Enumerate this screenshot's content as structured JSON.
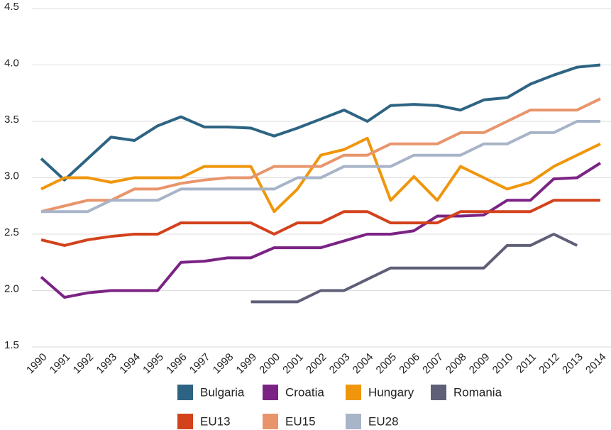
{
  "chart_data": {
    "type": "line",
    "categories": [
      "1990",
      "1991",
      "1992",
      "1993",
      "1994",
      "1995",
      "1996",
      "1997",
      "1998",
      "1999",
      "2000",
      "2001",
      "2002",
      "2003",
      "2004",
      "2005",
      "2006",
      "2007",
      "2008",
      "2009",
      "2010",
      "2011",
      "2012",
      "2013",
      "2014"
    ],
    "series": [
      {
        "name": "Bulgaria",
        "color": "#2e6483",
        "values": [
          3.17,
          2.98,
          3.17,
          3.36,
          3.33,
          3.46,
          3.54,
          3.45,
          3.45,
          3.44,
          3.37,
          3.44,
          3.52,
          3.6,
          3.5,
          3.64,
          3.65,
          3.64,
          3.6,
          3.69,
          3.71,
          3.83,
          3.91,
          3.98,
          4.0
        ]
      },
      {
        "name": "Croatia",
        "color": "#7b2384",
        "values": [
          2.12,
          1.94,
          1.98,
          2.0,
          2.0,
          2.0,
          2.25,
          2.26,
          2.29,
          2.29,
          2.38,
          2.38,
          2.38,
          2.44,
          2.5,
          2.5,
          2.53,
          2.66,
          2.66,
          2.67,
          2.8,
          2.8,
          2.99,
          3.0,
          3.13
        ]
      },
      {
        "name": "Hungary",
        "color": "#f0960c",
        "values": [
          2.9,
          3.0,
          3.0,
          2.96,
          3.0,
          3.0,
          3.0,
          3.1,
          3.1,
          3.1,
          2.7,
          2.9,
          3.2,
          3.25,
          3.35,
          2.8,
          3.01,
          2.8,
          3.1,
          3.0,
          2.9,
          2.96,
          3.1,
          3.2,
          3.3
        ]
      },
      {
        "name": "Romania",
        "color": "#5f5f78",
        "values": [
          null,
          null,
          null,
          null,
          null,
          null,
          null,
          null,
          null,
          1.9,
          1.9,
          1.9,
          2.0,
          2.0,
          2.1,
          2.2,
          2.2,
          2.2,
          2.2,
          2.2,
          2.4,
          2.4,
          2.5,
          2.4,
          null
        ]
      },
      {
        "name": "EU13",
        "color": "#d2421c",
        "values": [
          2.45,
          2.4,
          2.45,
          2.48,
          2.5,
          2.5,
          2.6,
          2.6,
          2.6,
          2.6,
          2.5,
          2.6,
          2.6,
          2.7,
          2.7,
          2.6,
          2.6,
          2.6,
          2.7,
          2.7,
          2.7,
          2.7,
          2.8,
          2.8,
          2.8
        ]
      },
      {
        "name": "EU15",
        "color": "#e8956c",
        "values": [
          2.7,
          2.75,
          2.8,
          2.8,
          2.9,
          2.9,
          2.95,
          2.98,
          3.0,
          3.0,
          3.1,
          3.1,
          3.1,
          3.2,
          3.2,
          3.3,
          3.3,
          3.3,
          3.4,
          3.4,
          3.5,
          3.6,
          3.6,
          3.6,
          3.7
        ]
      },
      {
        "name": "EU28",
        "color": "#a8b4c8",
        "values": [
          2.7,
          2.7,
          2.7,
          2.8,
          2.8,
          2.8,
          2.9,
          2.9,
          2.9,
          2.9,
          2.9,
          3.0,
          3.0,
          3.1,
          3.1,
          3.1,
          3.2,
          3.2,
          3.2,
          3.3,
          3.3,
          3.4,
          3.4,
          3.5,
          3.5
        ]
      }
    ],
    "ylim": [
      1.5,
      4.5
    ],
    "yticks": [
      1.5,
      {
        "value": 2,
        "label": "2.0"
      },
      2.5,
      {
        "value": 3,
        "label": "3.0"
      },
      3.5,
      {
        "value": 4,
        "label": "4.0"
      },
      4.5
    ],
    "grid": true
  }
}
